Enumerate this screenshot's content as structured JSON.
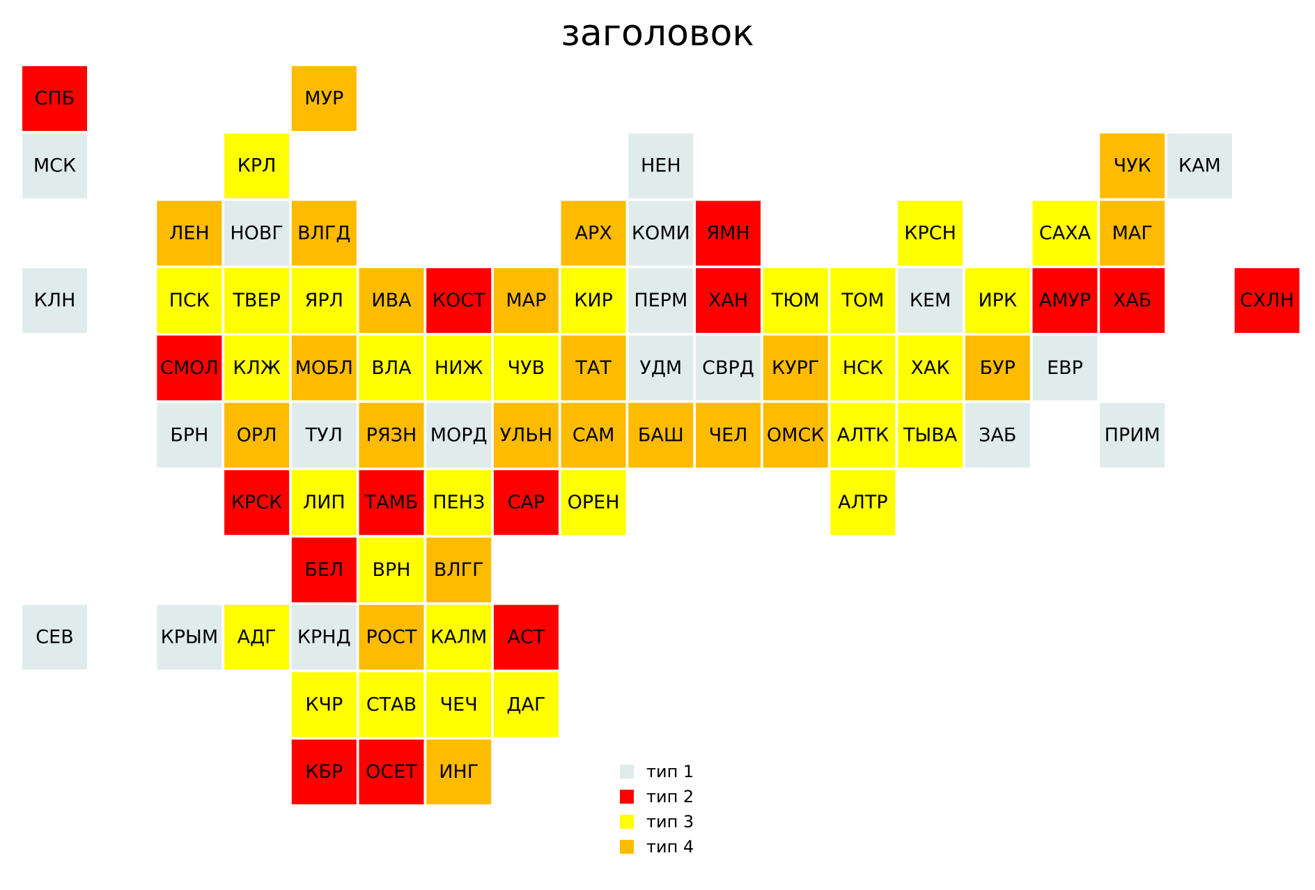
{
  "chart_data": {
    "type": "heatmap",
    "title": "заголовок",
    "categories": [
      {
        "key": "t1",
        "label": "тип 1",
        "color": "#e0ecec"
      },
      {
        "key": "t2",
        "label": "тип 2",
        "color": "#ff0000"
      },
      {
        "key": "t3",
        "label": "тип 3",
        "color": "#ffff00"
      },
      {
        "key": "t4",
        "label": "тип 4",
        "color": "#ffbb00"
      }
    ],
    "tiles": [
      {
        "label": "СПБ",
        "col": 0,
        "row": 0,
        "type": "t2"
      },
      {
        "label": "МУР",
        "col": 4,
        "row": 0,
        "type": "t4"
      },
      {
        "label": "МСК",
        "col": 0,
        "row": 1,
        "type": "t1"
      },
      {
        "label": "КРЛ",
        "col": 3,
        "row": 1,
        "type": "t3"
      },
      {
        "label": "НЕН",
        "col": 9,
        "row": 1,
        "type": "t1"
      },
      {
        "label": "ЧУК",
        "col": 16,
        "row": 1,
        "type": "t4"
      },
      {
        "label": "КАМ",
        "col": 17,
        "row": 1,
        "type": "t1"
      },
      {
        "label": "ЛЕН",
        "col": 2,
        "row": 2,
        "type": "t4"
      },
      {
        "label": "НОВГ",
        "col": 3,
        "row": 2,
        "type": "t1"
      },
      {
        "label": "ВЛГД",
        "col": 4,
        "row": 2,
        "type": "t4"
      },
      {
        "label": "АРХ",
        "col": 8,
        "row": 2,
        "type": "t4"
      },
      {
        "label": "КОМИ",
        "col": 9,
        "row": 2,
        "type": "t1"
      },
      {
        "label": "ЯМН",
        "col": 10,
        "row": 2,
        "type": "t2"
      },
      {
        "label": "КРСН",
        "col": 13,
        "row": 2,
        "type": "t3"
      },
      {
        "label": "САХА",
        "col": 15,
        "row": 2,
        "type": "t3"
      },
      {
        "label": "МАГ",
        "col": 16,
        "row": 2,
        "type": "t4"
      },
      {
        "label": "КЛН",
        "col": 0,
        "row": 3,
        "type": "t1"
      },
      {
        "label": "ПСК",
        "col": 2,
        "row": 3,
        "type": "t3"
      },
      {
        "label": "ТВЕР",
        "col": 3,
        "row": 3,
        "type": "t3"
      },
      {
        "label": "ЯРЛ",
        "col": 4,
        "row": 3,
        "type": "t3"
      },
      {
        "label": "ИВА",
        "col": 5,
        "row": 3,
        "type": "t4"
      },
      {
        "label": "КОСТ",
        "col": 6,
        "row": 3,
        "type": "t2"
      },
      {
        "label": "МАР",
        "col": 7,
        "row": 3,
        "type": "t4"
      },
      {
        "label": "КИР",
        "col": 8,
        "row": 3,
        "type": "t3"
      },
      {
        "label": "ПЕРМ",
        "col": 9,
        "row": 3,
        "type": "t1"
      },
      {
        "label": "ХАН",
        "col": 10,
        "row": 3,
        "type": "t2"
      },
      {
        "label": "ТЮМ",
        "col": 11,
        "row": 3,
        "type": "t3"
      },
      {
        "label": "ТОМ",
        "col": 12,
        "row": 3,
        "type": "t3"
      },
      {
        "label": "КЕМ",
        "col": 13,
        "row": 3,
        "type": "t1"
      },
      {
        "label": "ИРК",
        "col": 14,
        "row": 3,
        "type": "t3"
      },
      {
        "label": "АМУР",
        "col": 15,
        "row": 3,
        "type": "t2"
      },
      {
        "label": "ХАБ",
        "col": 16,
        "row": 3,
        "type": "t2"
      },
      {
        "label": "СХЛН",
        "col": 18,
        "row": 3,
        "type": "t2"
      },
      {
        "label": "СМОЛ",
        "col": 2,
        "row": 4,
        "type": "t2"
      },
      {
        "label": "КЛЖ",
        "col": 3,
        "row": 4,
        "type": "t3"
      },
      {
        "label": "МОБЛ",
        "col": 4,
        "row": 4,
        "type": "t4"
      },
      {
        "label": "ВЛА",
        "col": 5,
        "row": 4,
        "type": "t3"
      },
      {
        "label": "НИЖ",
        "col": 6,
        "row": 4,
        "type": "t3"
      },
      {
        "label": "ЧУВ",
        "col": 7,
        "row": 4,
        "type": "t3"
      },
      {
        "label": "ТАТ",
        "col": 8,
        "row": 4,
        "type": "t4"
      },
      {
        "label": "УДМ",
        "col": 9,
        "row": 4,
        "type": "t1"
      },
      {
        "label": "СВРД",
        "col": 10,
        "row": 4,
        "type": "t1"
      },
      {
        "label": "КУРГ",
        "col": 11,
        "row": 4,
        "type": "t4"
      },
      {
        "label": "НСК",
        "col": 12,
        "row": 4,
        "type": "t3"
      },
      {
        "label": "ХАК",
        "col": 13,
        "row": 4,
        "type": "t3"
      },
      {
        "label": "БУР",
        "col": 14,
        "row": 4,
        "type": "t4"
      },
      {
        "label": "ЕВР",
        "col": 15,
        "row": 4,
        "type": "t1"
      },
      {
        "label": "БРН",
        "col": 2,
        "row": 5,
        "type": "t1"
      },
      {
        "label": "ОРЛ",
        "col": 3,
        "row": 5,
        "type": "t4"
      },
      {
        "label": "ТУЛ",
        "col": 4,
        "row": 5,
        "type": "t1"
      },
      {
        "label": "РЯЗН",
        "col": 5,
        "row": 5,
        "type": "t4"
      },
      {
        "label": "МОРД",
        "col": 6,
        "row": 5,
        "type": "t1"
      },
      {
        "label": "УЛЬН",
        "col": 7,
        "row": 5,
        "type": "t4"
      },
      {
        "label": "САМ",
        "col": 8,
        "row": 5,
        "type": "t4"
      },
      {
        "label": "БАШ",
        "col": 9,
        "row": 5,
        "type": "t4"
      },
      {
        "label": "ЧЕЛ",
        "col": 10,
        "row": 5,
        "type": "t4"
      },
      {
        "label": "ОМСК",
        "col": 11,
        "row": 5,
        "type": "t4"
      },
      {
        "label": "АЛТК",
        "col": 12,
        "row": 5,
        "type": "t3"
      },
      {
        "label": "ТЫВА",
        "col": 13,
        "row": 5,
        "type": "t3"
      },
      {
        "label": "ЗАБ",
        "col": 14,
        "row": 5,
        "type": "t1"
      },
      {
        "label": "ПРИМ",
        "col": 16,
        "row": 5,
        "type": "t1"
      },
      {
        "label": "КРСК",
        "col": 3,
        "row": 6,
        "type": "t2"
      },
      {
        "label": "ЛИП",
        "col": 4,
        "row": 6,
        "type": "t3"
      },
      {
        "label": "ТАМБ",
        "col": 5,
        "row": 6,
        "type": "t2"
      },
      {
        "label": "ПЕНЗ",
        "col": 6,
        "row": 6,
        "type": "t3"
      },
      {
        "label": "САР",
        "col": 7,
        "row": 6,
        "type": "t2"
      },
      {
        "label": "ОРЕН",
        "col": 8,
        "row": 6,
        "type": "t3"
      },
      {
        "label": "АЛТР",
        "col": 12,
        "row": 6,
        "type": "t3"
      },
      {
        "label": "БЕЛ",
        "col": 4,
        "row": 7,
        "type": "t2"
      },
      {
        "label": "ВРН",
        "col": 5,
        "row": 7,
        "type": "t3"
      },
      {
        "label": "ВЛГГ",
        "col": 6,
        "row": 7,
        "type": "t4"
      },
      {
        "label": "СЕВ",
        "col": 0,
        "row": 8,
        "type": "t1"
      },
      {
        "label": "КРЫМ",
        "col": 2,
        "row": 8,
        "type": "t1"
      },
      {
        "label": "АДГ",
        "col": 3,
        "row": 8,
        "type": "t3"
      },
      {
        "label": "КРНД",
        "col": 4,
        "row": 8,
        "type": "t1"
      },
      {
        "label": "РОСТ",
        "col": 5,
        "row": 8,
        "type": "t4"
      },
      {
        "label": "КАЛМ",
        "col": 6,
        "row": 8,
        "type": "t3"
      },
      {
        "label": "АСТ",
        "col": 7,
        "row": 8,
        "type": "t2"
      },
      {
        "label": "КЧР",
        "col": 4,
        "row": 9,
        "type": "t3"
      },
      {
        "label": "СТАВ",
        "col": 5,
        "row": 9,
        "type": "t3"
      },
      {
        "label": "ЧЕЧ",
        "col": 6,
        "row": 9,
        "type": "t3"
      },
      {
        "label": "ДАГ",
        "col": 7,
        "row": 9,
        "type": "t3"
      },
      {
        "label": "КБР",
        "col": 4,
        "row": 10,
        "type": "t2"
      },
      {
        "label": "ОСЕТ",
        "col": 5,
        "row": 10,
        "type": "t2"
      },
      {
        "label": "ИНГ",
        "col": 6,
        "row": 10,
        "type": "t4"
      }
    ],
    "legend": "bottom-center",
    "grid": false
  }
}
